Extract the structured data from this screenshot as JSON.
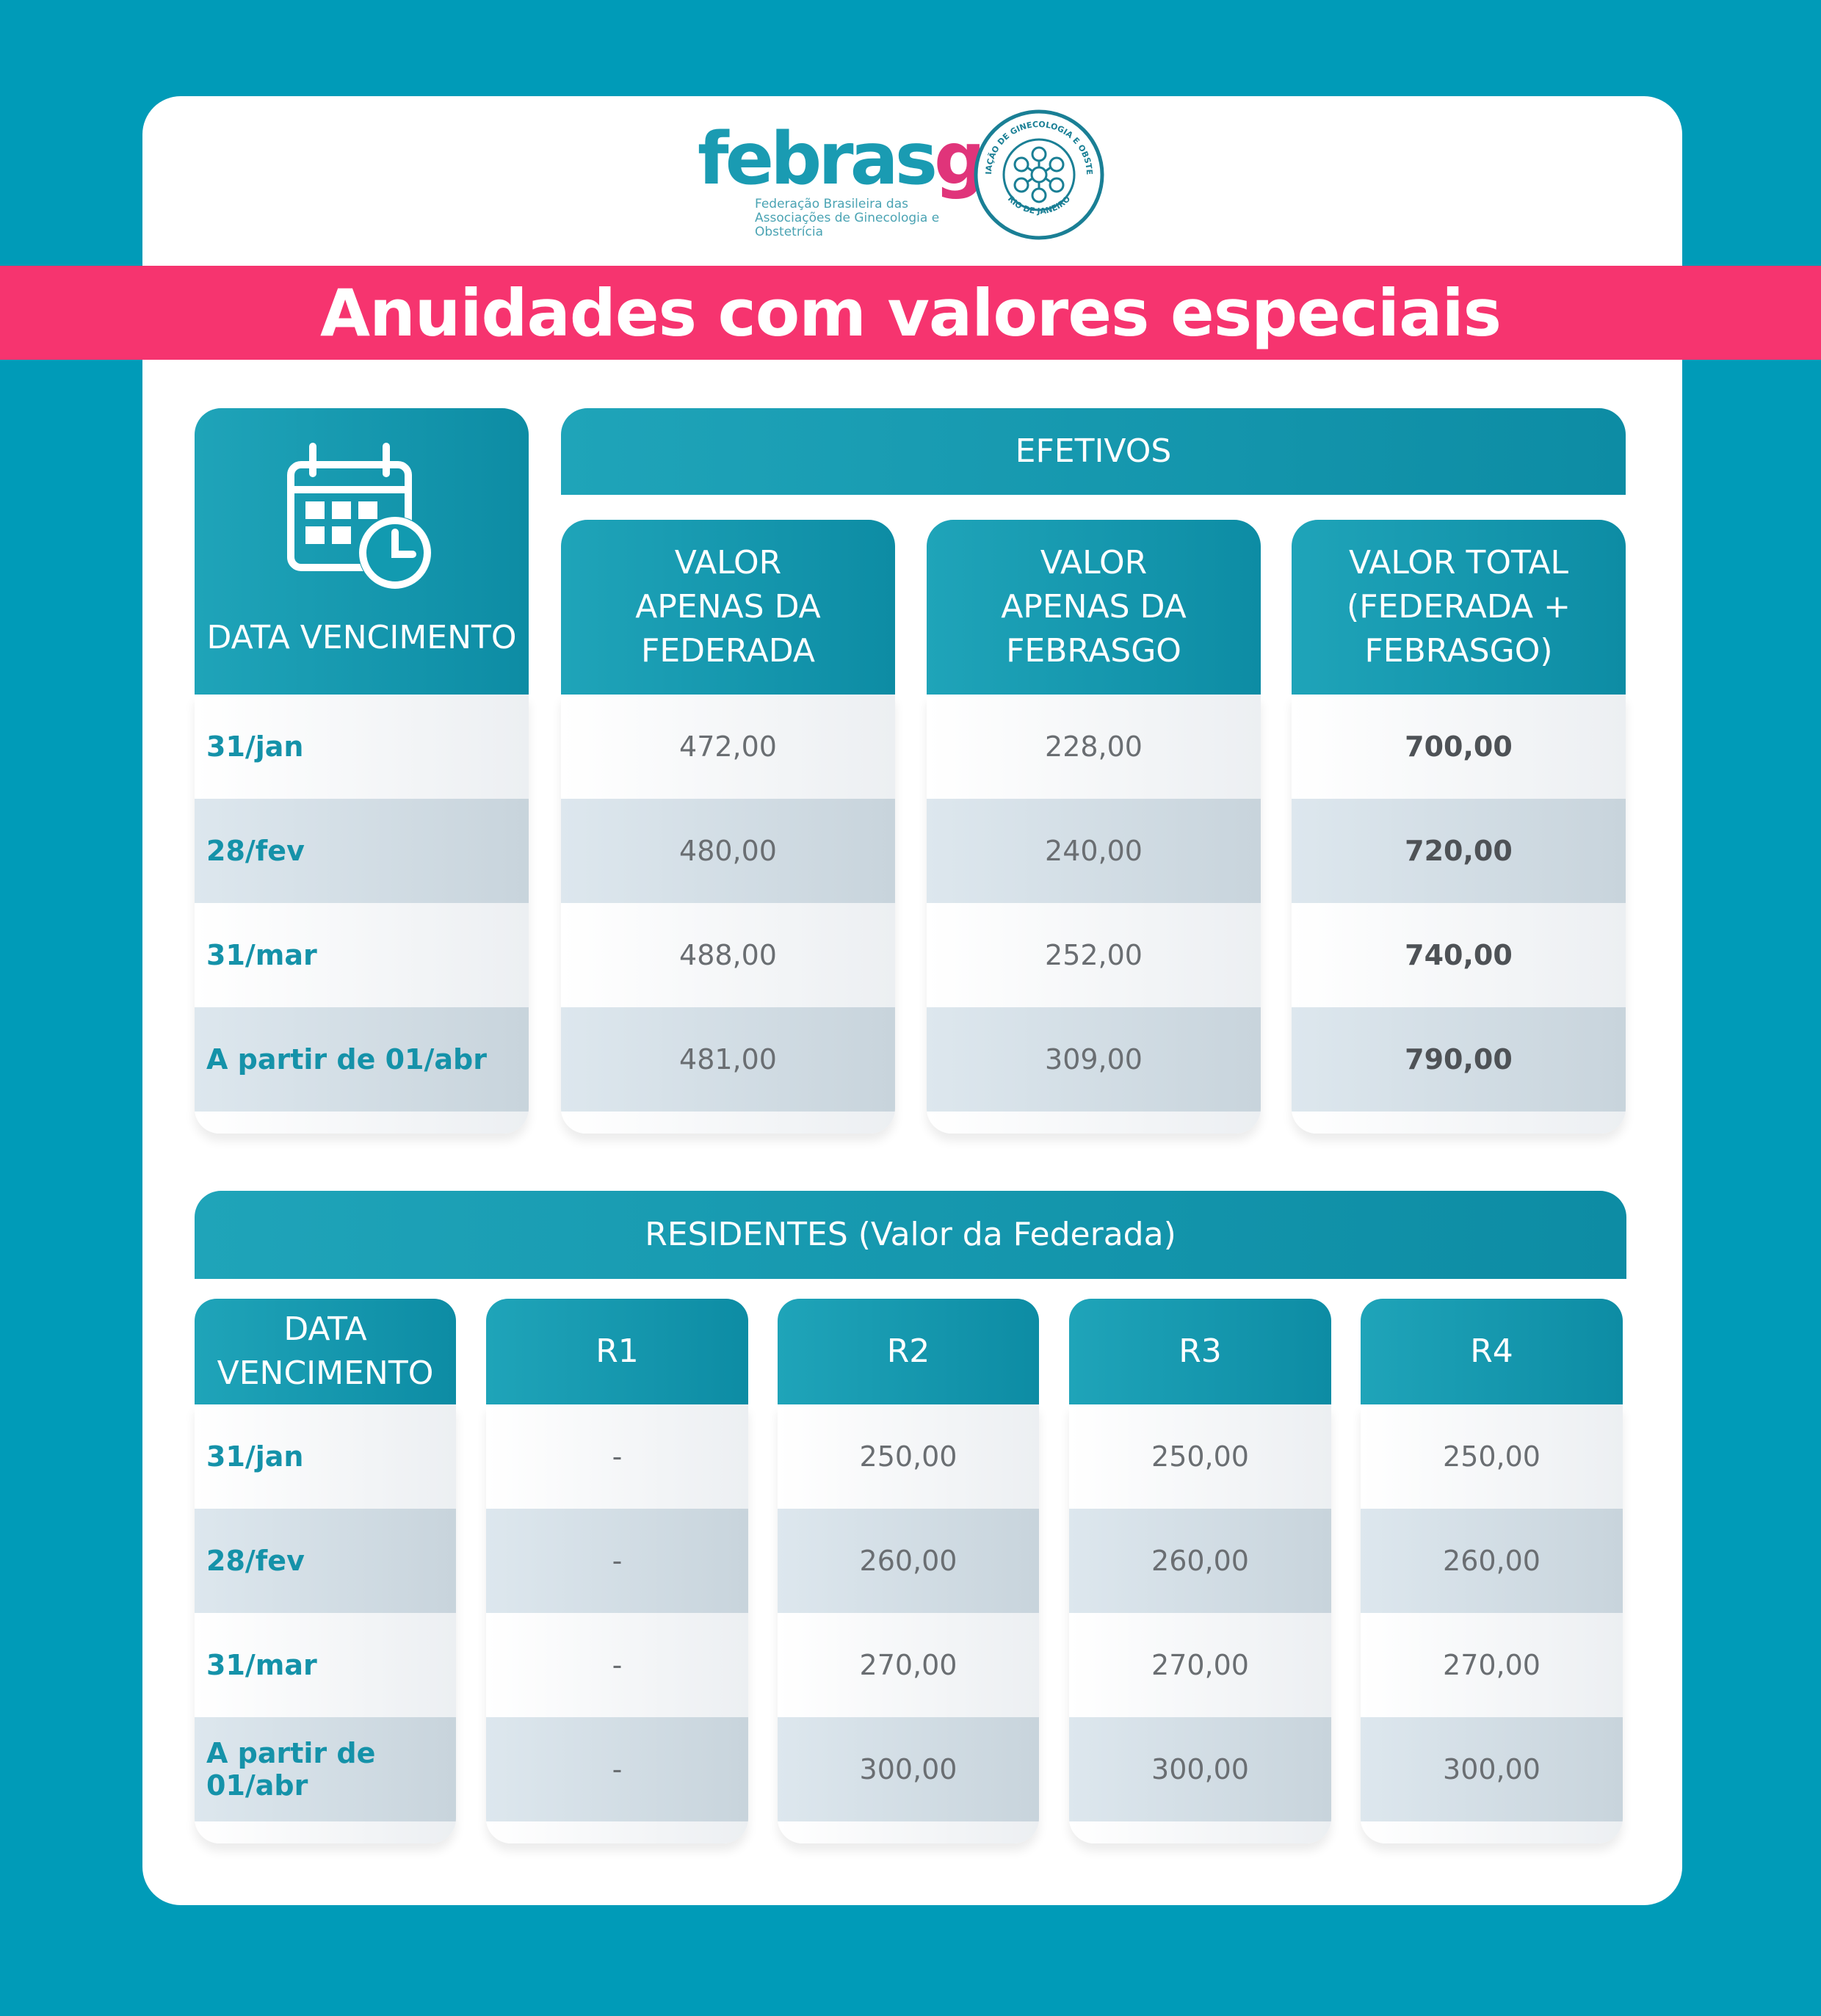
{
  "logo": {
    "word_febras": "febras",
    "word_go": "go",
    "subtitle_line1": "Federação Brasileira das",
    "subtitle_line2": "Associações de Ginecologia e Obstetrícia",
    "seal_text_top": "ASSOCIAÇÃO DE GINECOLOGIA E OBSTETRÍCIA",
    "seal_text_bottom": "RIO DE JANEIRO"
  },
  "banner": {
    "title": "Anuidades com valores especiais"
  },
  "efetivos": {
    "section_title": "EFETIVOS",
    "date_header": "DATA VENCIMENTO",
    "col_federada": [
      "VALOR",
      "APENAS DA",
      "FEDERADA"
    ],
    "col_febrasgo": [
      "VALOR",
      "APENAS DA",
      "FEBRASGO"
    ],
    "col_total": [
      "VALOR TOTAL",
      "(FEDERADA +",
      "FEBRASGO)"
    ],
    "rows": [
      {
        "date": "31/jan",
        "federada": "472,00",
        "febrasgo": "228,00",
        "total": "700,00"
      },
      {
        "date": "28/fev",
        "federada": "480,00",
        "febrasgo": "240,00",
        "total": "720,00"
      },
      {
        "date": "31/mar",
        "federada": "488,00",
        "febrasgo": "252,00",
        "total": "740,00"
      },
      {
        "date": "A partir de 01/abr",
        "federada": "481,00",
        "febrasgo": "309,00",
        "total": "790,00"
      }
    ]
  },
  "residentes": {
    "section_title": "RESIDENTES (Valor da Federada)",
    "date_header": [
      "DATA",
      "VENCIMENTO"
    ],
    "r1": "R1",
    "r2": "R2",
    "r3": "R3",
    "r4": "R4",
    "rows": [
      {
        "date": "31/jan",
        "r1": "-",
        "r2": "250,00",
        "r3": "250,00",
        "r4": "250,00"
      },
      {
        "date": "28/fev",
        "r1": "-",
        "r2": "260,00",
        "r3": "260,00",
        "r4": "260,00"
      },
      {
        "date": "31/mar",
        "r1": "-",
        "r2": "270,00",
        "r3": "270,00",
        "r4": "270,00"
      },
      {
        "date": "A partir de 01/abr",
        "r1": "-",
        "r2": "300,00",
        "r3": "300,00",
        "r4": "300,00"
      }
    ]
  },
  "colors": {
    "background": "#009bb8",
    "banner": "#f6346f",
    "teal_header": "#1fa4b9",
    "date_text": "#1592a9"
  }
}
